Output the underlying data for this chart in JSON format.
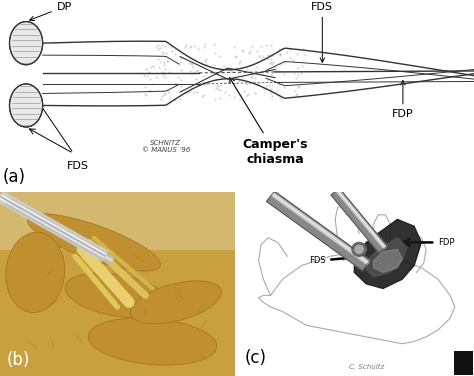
{
  "bg_color": "#ffffff",
  "fig_width": 4.74,
  "fig_height": 3.76,
  "dpi": 100,
  "panel_a": {
    "label": "(a)",
    "label_fs": 12,
    "annot_DP": "DP",
    "annot_FDS_top": "FDS",
    "annot_FDP": "FDP",
    "annot_FDS_bot": "FDS",
    "annot_campers": "Camper's\nchiasma",
    "annot_schnitz": "SCHNITZ\n© MANUS ’96",
    "annot_fs": 8,
    "campers_fs": 9
  },
  "panel_b": {
    "label": "(b)",
    "label_fs": 12,
    "bg": "#c8a850",
    "hand_color": "#c8a040",
    "tendon_color": "#e8c870",
    "instrument_color": "#cccccc"
  },
  "panel_c": {
    "label": "(c)",
    "label_fs": 12,
    "FDP_label": "FDP",
    "FDS_label": "FDS",
    "annot_fs": 6,
    "sign": "C. Schultz"
  },
  "watermark_color": "#111111"
}
